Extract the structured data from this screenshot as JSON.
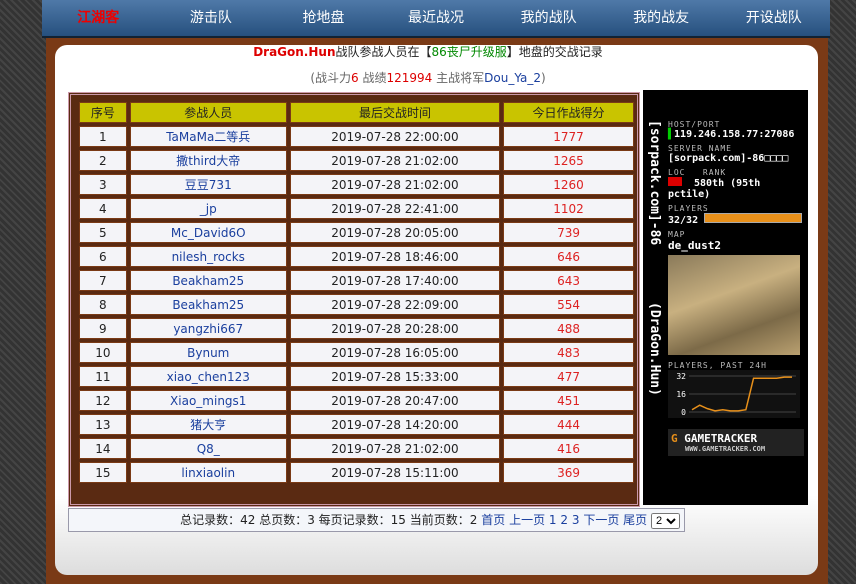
{
  "nav": [
    "江湖客",
    "游击队",
    "抢地盘",
    "最近战况",
    "我的战队",
    "我的战友",
    "开设战队"
  ],
  "header": {
    "team": "DraGon.Hun",
    "text1": "战队参战人员在【",
    "server": "86丧尸升级服",
    "text2": "】地盘的交战记录"
  },
  "subtitle": {
    "open": "(战斗力",
    "power": "6",
    "t2": " 战绩",
    "record": "121994",
    "t3": " 主战将军",
    "general": "Dou_Ya_2",
    "close": ")"
  },
  "table": {
    "headers": [
      "序号",
      "参战人员",
      "最后交战时间",
      "今日作战得分"
    ],
    "rows": [
      [
        1,
        "TaMaMa二等兵",
        "2019-07-28 22:00:00",
        1777
      ],
      [
        2,
        "撒third大帝",
        "2019-07-28 21:02:00",
        1265
      ],
      [
        3,
        "豆豆731",
        "2019-07-28 21:02:00",
        1260
      ],
      [
        4,
        "_jp",
        "2019-07-28 22:41:00",
        1102
      ],
      [
        5,
        "Mc_David6O",
        "2019-07-28 20:05:00",
        739
      ],
      [
        6,
        "nilesh_rocks",
        "2019-07-28 18:46:00",
        646
      ],
      [
        7,
        "Beakham25",
        "2019-07-28 17:40:00",
        643
      ],
      [
        8,
        "Beakham25",
        "2019-07-28 22:09:00",
        554
      ],
      [
        9,
        "yangzhi667",
        "2019-07-28 20:28:00",
        488
      ],
      [
        10,
        "Bynum",
        "2019-07-28 16:05:00",
        483
      ],
      [
        11,
        "xiao_chen123",
        "2019-07-28 15:33:00",
        477
      ],
      [
        12,
        "Xiao_mings1",
        "2019-07-28 20:47:00",
        451
      ],
      [
        13,
        "猪大亨",
        "2019-07-28 14:20:00",
        444
      ],
      [
        14,
        "Q8_",
        "2019-07-28 21:02:00",
        416
      ],
      [
        15,
        "linxiaolin",
        "2019-07-28 15:11:00",
        369
      ]
    ]
  },
  "pager": {
    "text": "总记录数：42 总页数：3 每页记录数：15 当前页数：2",
    "links": [
      "首页",
      "上一页",
      "1",
      "2",
      "3",
      "下一页",
      "尾页"
    ],
    "select": "2"
  },
  "tracker": {
    "vertical1": "[sorpack.com]-86",
    "vertical2": "(DraGon.Hun)",
    "host_label": "HOST/PORT",
    "host": "119.246.158.77:27086",
    "name_label": "SERVER NAME",
    "name": "[sorpack.com]-86□□□□",
    "loc_label": "LOC",
    "rank_label": "RANK",
    "rank": "580th (95th pctile)",
    "players_label": "PLAYERS",
    "players": "32/32",
    "map_label": "MAP",
    "map": "de_dust2",
    "graph_label": "PLAYERS, PAST 24H",
    "graph": {
      "ylim": [
        0,
        32
      ],
      "yticks": [
        32,
        16,
        0
      ],
      "values": [
        2,
        6,
        3,
        1,
        2,
        1,
        1,
        2,
        30,
        30,
        30,
        30,
        31,
        31
      ]
    },
    "brand": "GAMETRACKER",
    "url": "WWW.GAMETRACKER.COM"
  }
}
